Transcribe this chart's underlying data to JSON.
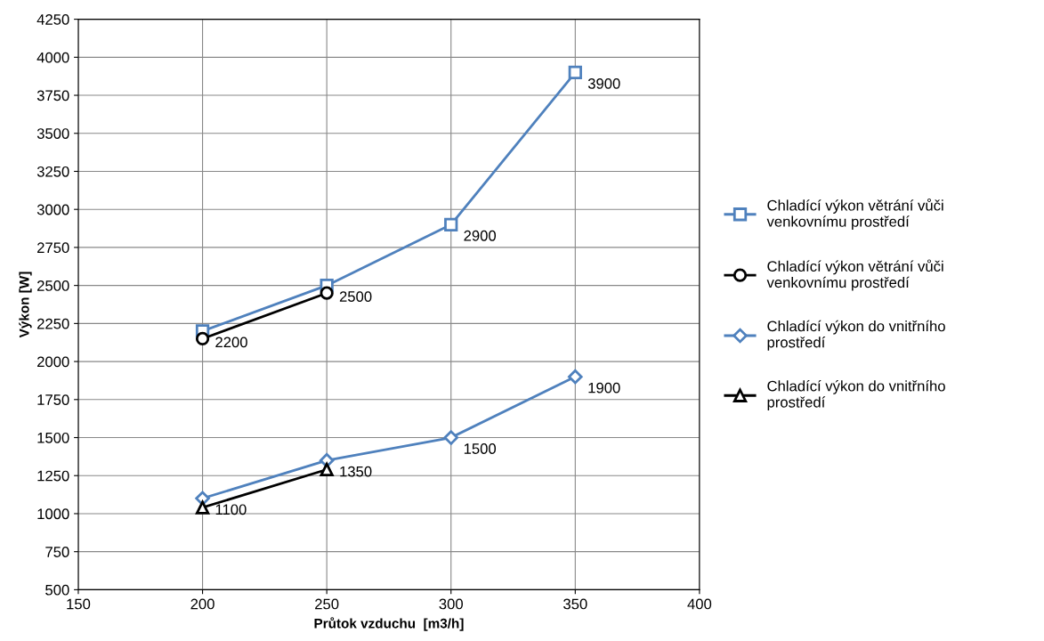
{
  "chart_data": {
    "type": "line",
    "xlabel": "Průtok vzduchu  [m3/h]",
    "ylabel": "Výkon [W]",
    "xlim": [
      150,
      400
    ],
    "xticks": [
      150,
      200,
      250,
      300,
      350,
      400
    ],
    "ylim": [
      500,
      4250
    ],
    "yticks": [
      500,
      750,
      1000,
      1250,
      1500,
      1750,
      2000,
      2250,
      2500,
      2750,
      3000,
      3250,
      3500,
      3750,
      4000,
      4250
    ],
    "grid": true,
    "legend": "right",
    "series": [
      {
        "name": "Chladící výkon větrání vůči\nvenkovnímu prostředí",
        "color": "#4f81bd",
        "marker": "square",
        "x": [
          200,
          250,
          300,
          350
        ],
        "values": [
          2200,
          2500,
          2900,
          3900
        ],
        "value_labels": [
          "2200",
          "2500",
          "2900",
          "3900"
        ]
      },
      {
        "name": "Chladící výkon větrání vůči\nvenkovnímu prostředí",
        "color": "#000000",
        "marker": "circle",
        "x": [
          200,
          250
        ],
        "values": [
          2150,
          2450
        ]
      },
      {
        "name": "Chladící výkon do vnitřního\nprostředí",
        "color": "#4f81bd",
        "marker": "diamond",
        "x": [
          200,
          250,
          300,
          350
        ],
        "values": [
          1100,
          1350,
          1500,
          1900
        ],
        "value_labels": [
          "1100",
          "1350",
          "1500",
          "1900"
        ]
      },
      {
        "name": "Chladící výkon do vnitřního\nprostředí",
        "color": "#000000",
        "marker": "triangle",
        "x": [
          200,
          250
        ],
        "values": [
          1040,
          1290
        ]
      }
    ]
  }
}
